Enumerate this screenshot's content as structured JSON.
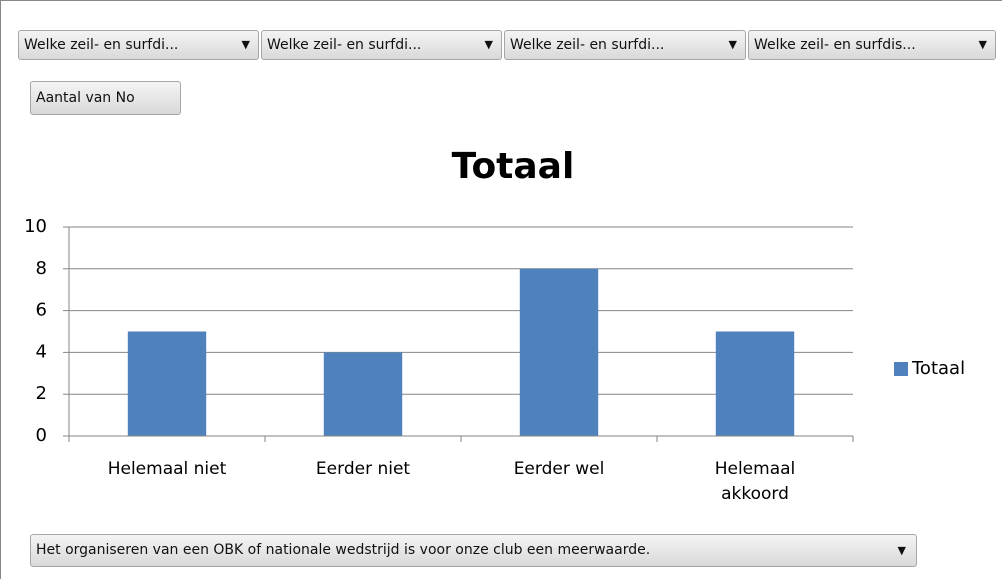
{
  "filters": [
    "Welke zeil- en surfdi...",
    "Welke zeil- en surfdi...",
    "Welke zeil- en surfdi...",
    "Welke zeil- en surfdis..."
  ],
  "value_field": "Aantal van No",
  "axis_field": "Het organiseren van een OBK of nationale wedstrijd is voor onze club een meerwaarde.",
  "chart_data": {
    "type": "bar",
    "title": "Totaal",
    "categories": [
      "Helemaal niet",
      "Eerder niet",
      "Eerder wel",
      "Helemaal akkoord"
    ],
    "series": [
      {
        "name": "Totaal",
        "color": "#4f81bd",
        "values": [
          5,
          4,
          8,
          5
        ]
      }
    ],
    "ylim": [
      0,
      10
    ],
    "yticks": [
      0,
      2,
      4,
      6,
      8,
      10
    ],
    "grid": true,
    "legend": "right"
  }
}
